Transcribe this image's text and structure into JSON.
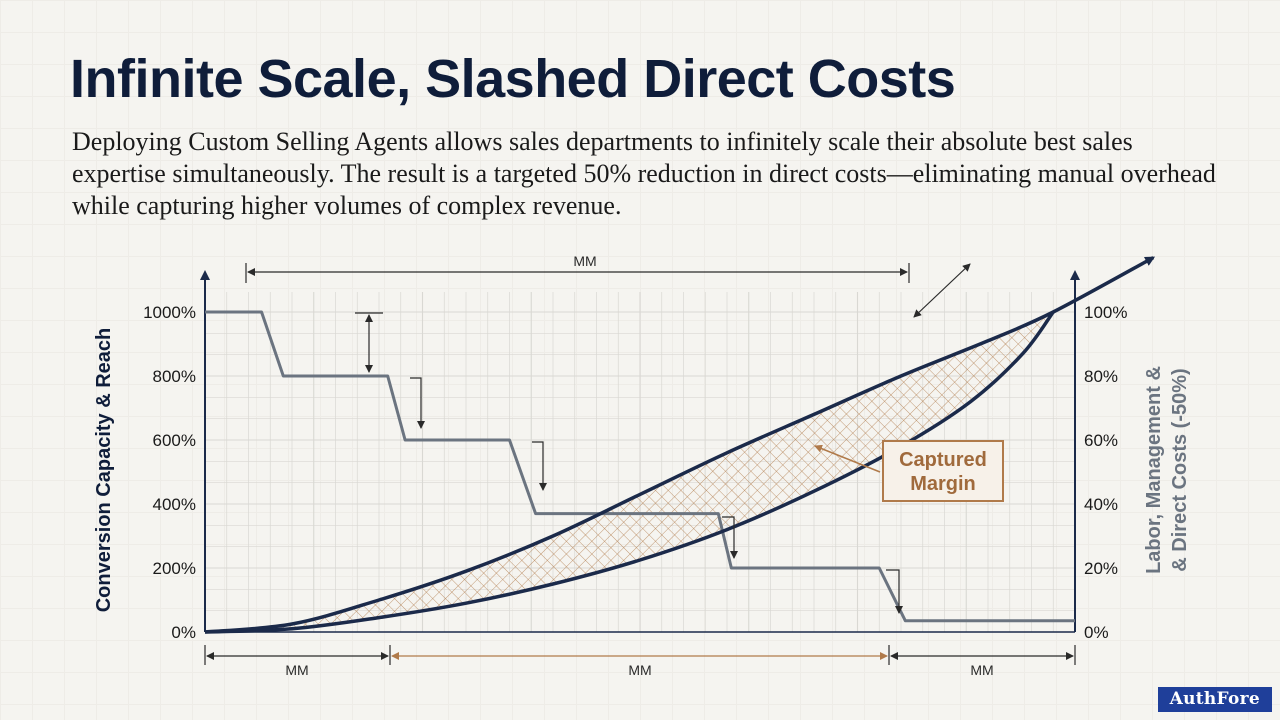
{
  "title": "Infinite Scale, Slashed Direct Costs",
  "subtitle": "Deploying Custom Selling Agents allows sales departments to infinitely scale their absolute best sales expertise simultaneously. The result is a targeted 50% reduction in direct costs—eliminating manual overhead while capturing higher volumes of complex revenue.",
  "brand": "AuthFore",
  "colors": {
    "navy": "#1b2a4a",
    "slate": "#6b7480",
    "bronze": "#b07a4a",
    "grid": "#d9d8d3",
    "text": "#1a1a1a"
  },
  "chart_data": {
    "type": "line",
    "x_domain": [
      0,
      100
    ],
    "left_axis": {
      "label": "Conversion Capacity & Reach",
      "ticks": [
        "0%",
        "200%",
        "400%",
        "600%",
        "800%",
        "1000%"
      ],
      "range": [
        0,
        1000
      ]
    },
    "right_axis": {
      "label": "Labor, Management & Direct Costs (-50%)",
      "label_lines": [
        "Labor, Management &",
        "& Direct Costs (-50%)"
      ],
      "ticks": [
        "0%",
        "20%",
        "40%",
        "60%",
        "80%",
        "100%"
      ],
      "range": [
        0,
        100
      ]
    },
    "series": [
      {
        "name": "Capacity (upper curve)",
        "axis": "left",
        "x": [
          0,
          10,
          20,
          30,
          40,
          50,
          60,
          70,
          80,
          90,
          97.5,
          109
        ],
        "y": [
          0,
          25,
          100,
          190,
          300,
          430,
          560,
          680,
          800,
          910,
          1000,
          1170
        ]
      },
      {
        "name": "Capacity (lower curve)",
        "axis": "left",
        "x": [
          0,
          10,
          20,
          30,
          40,
          50,
          60,
          70,
          80,
          88,
          94,
          97.5
        ],
        "y": [
          0,
          10,
          45,
          90,
          150,
          225,
          320,
          440,
          580,
          720,
          870,
          1000
        ]
      },
      {
        "name": "Direct Costs (step-down)",
        "axis": "right",
        "x": [
          0,
          6.5,
          9,
          21,
          23,
          35,
          38,
          59,
          60.5,
          77.5,
          80.5,
          100
        ],
        "y": [
          100,
          100,
          80,
          80,
          60,
          60,
          37,
          37,
          20,
          20,
          3.5,
          3.5
        ]
      }
    ],
    "annotations": {
      "captured_margin": "Captured\nMargin",
      "top_dimension": "MM",
      "bottom_dimensions": [
        "MM",
        "MM",
        "MM"
      ]
    }
  }
}
